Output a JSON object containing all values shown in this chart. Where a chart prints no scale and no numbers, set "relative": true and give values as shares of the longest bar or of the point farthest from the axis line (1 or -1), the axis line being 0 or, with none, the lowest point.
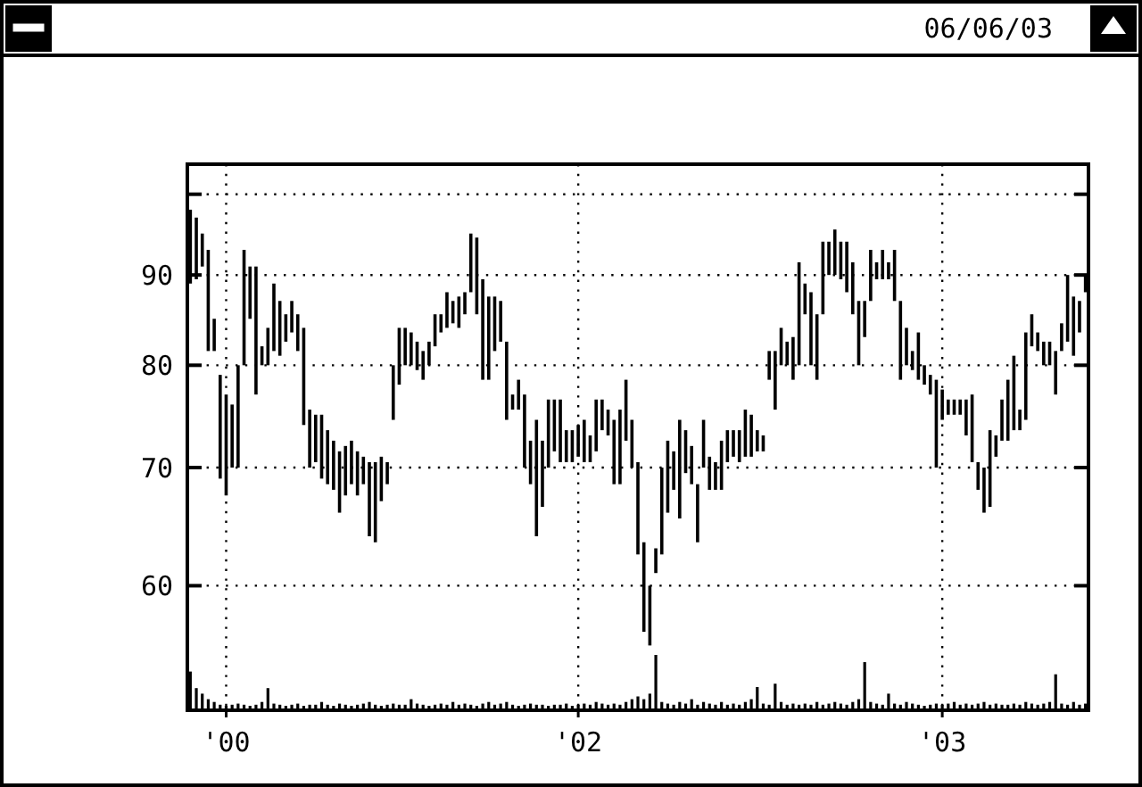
{
  "chart_data": [
    {
      "type": "bar",
      "subtitle": "06/06/03",
      "tick_labels": "y",
      "categories": [
        null,
        null,
        null,
        null,
        null,
        null,
        null,
        null,
        null,
        null,
        null,
        null,
        null,
        null,
        null,
        null,
        null,
        null,
        null,
        null,
        null,
        null,
        null,
        null,
        null,
        null,
        null,
        null,
        null,
        null,
        null,
        null,
        null,
        null,
        null,
        null,
        null,
        null,
        null,
        null,
        null,
        null,
        null,
        null,
        null,
        null,
        null,
        null,
        null,
        null,
        null,
        null,
        null,
        null,
        null,
        null,
        null,
        null,
        null,
        null,
        null,
        null,
        null,
        null,
        null,
        null,
        null,
        null,
        null,
        null,
        null,
        null,
        null,
        null,
        null,
        null,
        null,
        null,
        null,
        null,
        null,
        null,
        null,
        null,
        null,
        null,
        null,
        null,
        null,
        null,
        null,
        null,
        null,
        null,
        null,
        null,
        null,
        null,
        null,
        null,
        null,
        null,
        null,
        null,
        null,
        null,
        null,
        null,
        null,
        null,
        null,
        null,
        null,
        null,
        null,
        null,
        null,
        null,
        null,
        null,
        null,
        null,
        null,
        null,
        null,
        null,
        null,
        null,
        null,
        null,
        null,
        null,
        null,
        null,
        null,
        null,
        null,
        null,
        null,
        null,
        null,
        null,
        null,
        null,
        null,
        null,
        null,
        null,
        null,
        null,
        null
      ],
      "base": [
        89,
        89.5,
        91,
        81.5,
        81.5,
        69,
        67.5,
        70,
        70,
        80,
        85,
        77,
        80,
        80,
        81.5,
        81,
        82.5,
        83.5,
        81.5,
        74,
        70,
        70.5,
        69,
        68.5,
        68,
        66,
        67.5,
        68.5,
        67.5,
        68.5,
        64,
        63.5,
        67,
        68.5,
        74.5,
        78,
        80,
        80,
        79.5,
        78.5,
        80,
        82,
        83.5,
        84,
        84.5,
        84,
        85.5,
        88,
        85.5,
        78.5,
        78.5,
        81.5,
        82.5,
        74.5,
        75.5,
        75.5,
        70,
        68.5,
        64,
        66.5,
        70,
        71.5,
        70.5,
        70.5,
        70.5,
        71,
        70.5,
        70.5,
        71.5,
        73.5,
        73,
        68.5,
        68.5,
        72.5,
        70,
        62.5,
        56.5,
        55.5,
        61,
        62.5,
        66,
        68,
        65.5,
        69.5,
        68.5,
        63.5,
        70,
        68,
        68,
        68,
        70.5,
        71,
        70.5,
        71,
        71,
        71.5,
        71.5,
        78.5,
        75.5,
        80,
        80,
        78.5,
        80,
        85.5,
        80,
        78.5,
        85.5,
        90,
        90,
        89.5,
        88,
        85.5,
        80,
        83,
        87,
        89.5,
        89.5,
        89.5,
        87,
        78.5,
        80,
        79.5,
        78.5,
        78,
        77,
        70,
        74.5,
        75,
        75,
        75,
        73,
        70.5,
        68,
        66,
        66.5,
        71,
        72.5,
        72.5,
        73.5,
        73.5,
        74.5,
        82,
        81.5,
        80,
        80,
        77,
        81.5,
        82.5,
        81,
        83.5,
        88
      ],
      "values": [
        9,
        7.5,
        4,
        11.5,
        3.5,
        10,
        9.5,
        6,
        10,
        13,
        6,
        14,
        2,
        4,
        7.5,
        6,
        3,
        3.5,
        4,
        10,
        5.5,
        4.5,
        6,
        5,
        4.5,
        5.5,
        4.5,
        4,
        4,
        2.5,
        6.5,
        7,
        4,
        2,
        5.5,
        6,
        4,
        3.5,
        3,
        3,
        2.5,
        3.5,
        2,
        4,
        2.5,
        3.5,
        2.5,
        7,
        9,
        11,
        9,
        6,
        4.5,
        8,
        1.5,
        3,
        7,
        4,
        10.5,
        6,
        6.5,
        5,
        6,
        3,
        3,
        3,
        4,
        2.5,
        5,
        3,
        2.5,
        6,
        7,
        6,
        4.5,
        8,
        7,
        4.5,
        2,
        7.5,
        6.5,
        3.5,
        9,
        4,
        3.5,
        5,
        4.5,
        3,
        2.5,
        4.5,
        3,
        2.5,
        3,
        4.5,
        4,
        2,
        1.5,
        3,
        6,
        4,
        2.5,
        4.5,
        11.5,
        3.5,
        8,
        7,
        8.5,
        4,
        5.5,
        4.5,
        6,
        6,
        7,
        4,
        6,
        2,
        3.5,
        2,
        6,
        8.5,
        4,
        2,
        5,
        2,
        2,
        8.5,
        3,
        1.5,
        1.5,
        1.5,
        3.5,
        6.5,
        2.5,
        4,
        7,
        2,
        4,
        6,
        7.5,
        2,
        9,
        3.5,
        2,
        2.5,
        2.5,
        4.5,
        3,
        7.5,
        6.5,
        3.5,
        2
      ],
      "color": "#000000",
      "log": true,
      "ylim": [
        51,
        104
      ],
      "yticks": [
        60,
        70,
        80,
        90,
        {
          "value": 100,
          "label": null
        }
      ],
      "grid": true
    },
    {
      "type": "bar",
      "relative": true,
      "color": "#000000",
      "categories": [
        null,
        null,
        null,
        null,
        null,
        null,
        "'00",
        null,
        null,
        null,
        null,
        null,
        null,
        null,
        null,
        null,
        null,
        null,
        null,
        null,
        null,
        null,
        null,
        null,
        null,
        null,
        null,
        null,
        null,
        null,
        null,
        null,
        null,
        null,
        null,
        null,
        null,
        null,
        null,
        null,
        null,
        null,
        null,
        null,
        null,
        null,
        null,
        null,
        null,
        null,
        null,
        null,
        null,
        null,
        null,
        null,
        null,
        null,
        null,
        null,
        null,
        null,
        null,
        null,
        null,
        "'02",
        null,
        null,
        null,
        null,
        null,
        null,
        null,
        null,
        null,
        null,
        null,
        null,
        null,
        null,
        null,
        null,
        null,
        null,
        null,
        null,
        null,
        null,
        null,
        null,
        null,
        null,
        null,
        null,
        null,
        null,
        null,
        null,
        null,
        null,
        null,
        null,
        null,
        null,
        null,
        null,
        null,
        null,
        null,
        null,
        null,
        null,
        null,
        null,
        null,
        null,
        null,
        null,
        null,
        null,
        null,
        null,
        null,
        null,
        null,
        null,
        "'03",
        null,
        null,
        null,
        null,
        null,
        null,
        null,
        null,
        null,
        null,
        null,
        null,
        null,
        null,
        null,
        null,
        null,
        null,
        null,
        null,
        null,
        null,
        null,
        null
      ],
      "values": [
        0.7,
        0.4,
        0.3,
        0.2,
        0.15,
        0.1,
        0.08,
        0.1,
        0.12,
        0.1,
        0.08,
        0.1,
        0.15,
        0.4,
        0.12,
        0.1,
        0.08,
        0.1,
        0.12,
        0.08,
        0.1,
        0.1,
        0.15,
        0.1,
        0.08,
        0.12,
        0.1,
        0.08,
        0.1,
        0.12,
        0.15,
        0.1,
        0.08,
        0.1,
        0.12,
        0.1,
        0.1,
        0.2,
        0.12,
        0.1,
        0.08,
        0.1,
        0.12,
        0.1,
        0.15,
        0.1,
        0.12,
        0.1,
        0.08,
        0.12,
        0.15,
        0.1,
        0.12,
        0.15,
        0.1,
        0.08,
        0.1,
        0.12,
        0.1,
        0.1,
        0.08,
        0.1,
        0.1,
        0.12,
        0.08,
        0.1,
        0.12,
        0.1,
        0.15,
        0.12,
        0.1,
        0.12,
        0.1,
        0.15,
        0.2,
        0.25,
        0.2,
        0.3,
        1,
        0.15,
        0.12,
        0.1,
        0.15,
        0.12,
        0.2,
        0.1,
        0.15,
        0.12,
        0.1,
        0.15,
        0.1,
        0.12,
        0.1,
        0.15,
        0.2,
        0.42,
        0.12,
        0.1,
        0.48,
        0.15,
        0.1,
        0.12,
        0.1,
        0.12,
        0.1,
        0.15,
        0.1,
        0.12,
        0.15,
        0.12,
        0.1,
        0.15,
        0.2,
        0.87,
        0.15,
        0.12,
        0.1,
        0.3,
        0.12,
        0.1,
        0.15,
        0.12,
        0.1,
        0.08,
        0.1,
        0.12,
        0.1,
        0.12,
        0.15,
        0.1,
        0.12,
        0.1,
        0.12,
        0.15,
        0.1,
        0.12,
        0.1,
        0.1,
        0.12,
        0.1,
        0.15,
        0.12,
        0.1,
        0.12,
        0.15,
        0.65,
        0.12,
        0.1,
        0.15,
        0.1,
        0.12
      ]
    }
  ]
}
